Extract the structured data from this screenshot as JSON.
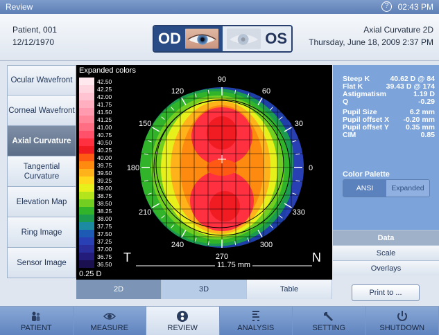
{
  "titlebar": {
    "title": "Review",
    "help_glyph": "?",
    "time": "02:43 PM"
  },
  "header": {
    "patient": "Patient, 001",
    "dob": "12/12/1970",
    "eye_od": "OD",
    "eye_os": "OS",
    "map_title": "Axial Curvature 2D",
    "exam_datetime": "Thursday, June 18, 2009 2:37 PM"
  },
  "leftnav": [
    {
      "label": "Ocular Wavefront"
    },
    {
      "label": "Corneal Wavefront"
    },
    {
      "label": "Axial Curvature"
    },
    {
      "label": "Tangential Curvature"
    },
    {
      "label": "Elevation Map"
    },
    {
      "label": "Ring Image"
    },
    {
      "label": "Sensor Image"
    }
  ],
  "map": {
    "scale_title": "Expanded colors",
    "scale": [
      {
        "v": "42.50",
        "c": "#ffe8ee"
      },
      {
        "v": "42.25",
        "c": "#ffd6e0"
      },
      {
        "v": "42.00",
        "c": "#ffc3d1"
      },
      {
        "v": "41.75",
        "c": "#ffafc0"
      },
      {
        "v": "41.50",
        "c": "#ff9aaf"
      },
      {
        "v": "41.25",
        "c": "#ff8598"
      },
      {
        "v": "41.00",
        "c": "#ff6e82"
      },
      {
        "v": "40.75",
        "c": "#ff526a"
      },
      {
        "v": "40.50",
        "c": "#ff3040"
      },
      {
        "v": "40.25",
        "c": "#f01c22"
      },
      {
        "v": "40.00",
        "c": "#ff5a14"
      },
      {
        "v": "39.75",
        "c": "#ff8a10"
      },
      {
        "v": "39.50",
        "c": "#ffb21a"
      },
      {
        "v": "39.25",
        "c": "#ffd81e"
      },
      {
        "v": "39.00",
        "c": "#e8f01c"
      },
      {
        "v": "38.75",
        "c": "#b4e41c"
      },
      {
        "v": "38.50",
        "c": "#72cf22"
      },
      {
        "v": "38.25",
        "c": "#32b42a"
      },
      {
        "v": "38.00",
        "c": "#1c9a50"
      },
      {
        "v": "37.75",
        "c": "#1c8aa0"
      },
      {
        "v": "37.50",
        "c": "#1c5ab4"
      },
      {
        "v": "37.25",
        "c": "#2840b4"
      },
      {
        "v": "37.00",
        "c": "#2a2e9a"
      },
      {
        "v": "36.75",
        "c": "#241c7a"
      },
      {
        "v": "36.50",
        "c": "#1a1050"
      }
    ],
    "step": "0.25 D",
    "temporal": "T",
    "nasal": "N",
    "diameter": "11.75 mm",
    "angles": [
      "90",
      "60",
      "30",
      "0",
      "330",
      "300",
      "270",
      "240",
      "210",
      "180",
      "150",
      "120"
    ]
  },
  "data": {
    "rows": [
      {
        "label": "Steep K",
        "value": "40.62 D @ 84"
      },
      {
        "label": "Flat K",
        "value": "39.43 D @ 174"
      },
      {
        "label": "Astigmatism",
        "value": "1.19 D"
      },
      {
        "label": "Q",
        "value": "-0.29"
      },
      {
        "label": "Pupil Size",
        "value": "6.2 mm"
      },
      {
        "label": "Pupil offset X",
        "value": "-0.20 mm"
      },
      {
        "label": "Pupil offset Y",
        "value": "0.35 mm"
      },
      {
        "label": "CIM",
        "value": "0.85"
      }
    ],
    "palette_title": "Color Palette",
    "palette_ansi": "ANSI",
    "palette_expanded": "Expanded"
  },
  "right_tabs": {
    "data": "Data",
    "scale": "Scale",
    "overlays": "Overlays"
  },
  "view_tabs": {
    "t2d": "2D",
    "t3d": "3D",
    "table": "Table"
  },
  "print_label": "Print to ...",
  "bottomnav": {
    "patient": "PATIENT",
    "measure": "MEASURE",
    "review": "REVIEW",
    "analysis": "ANALYSIS",
    "setting": "SETTING",
    "shutdown": "SHUTDOWN"
  }
}
